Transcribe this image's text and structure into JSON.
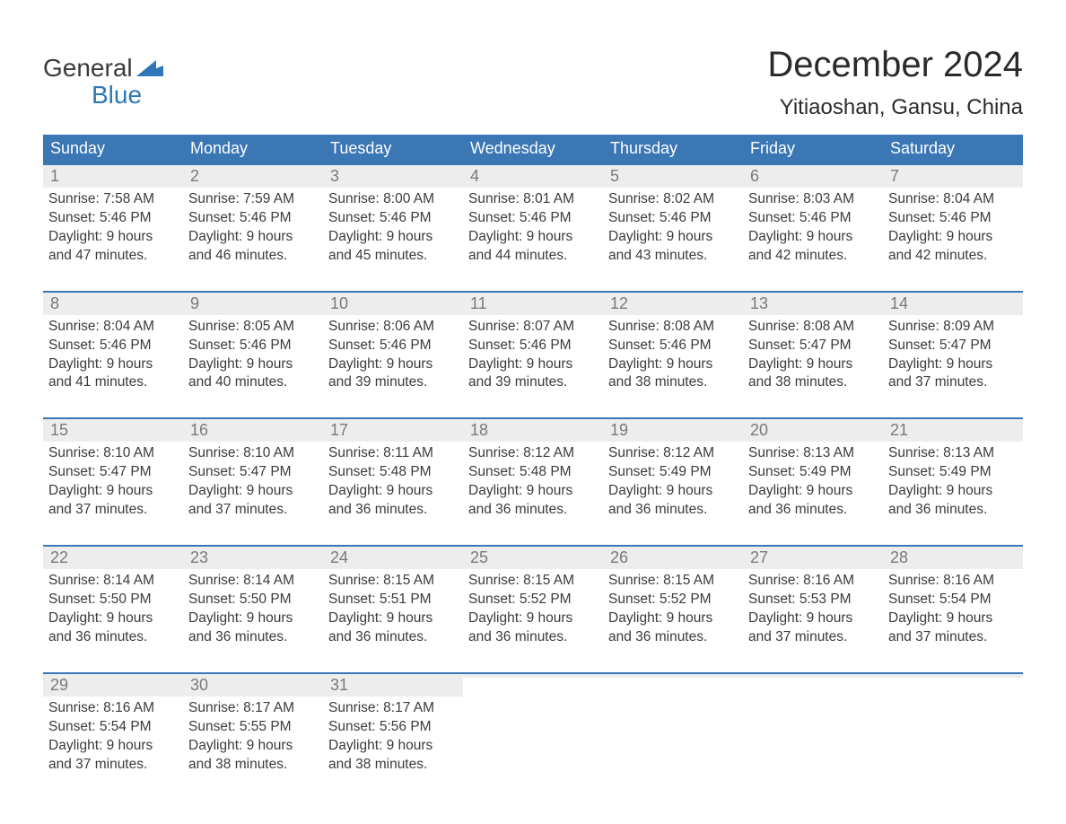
{
  "brand": {
    "word1": "General",
    "word2": "Blue",
    "word1_color": "#3a3a3a",
    "word2_color": "#2f77b8",
    "flag_color": "#2f77b8"
  },
  "title": "December 2024",
  "location": "Yitiaoshan, Gansu, China",
  "colors": {
    "header_bg": "#3a77b4",
    "header_text": "#ffffff",
    "row_accent": "#3a77b4",
    "daynum_bg": "#ededed",
    "daynum_text": "#7a7a7a",
    "body_text": "#3b3b3b",
    "page_bg": "#ffffff"
  },
  "typography": {
    "title_fontsize": 40,
    "location_fontsize": 24,
    "dow_fontsize": 18,
    "daynum_fontsize": 18,
    "body_fontsize": 15.5
  },
  "days_of_week": [
    "Sunday",
    "Monday",
    "Tuesday",
    "Wednesday",
    "Thursday",
    "Friday",
    "Saturday"
  ],
  "weeks": [
    [
      {
        "n": "1",
        "sunrise": "Sunrise: 7:58 AM",
        "sunset": "Sunset: 5:46 PM",
        "d1": "Daylight: 9 hours",
        "d2": "and 47 minutes."
      },
      {
        "n": "2",
        "sunrise": "Sunrise: 7:59 AM",
        "sunset": "Sunset: 5:46 PM",
        "d1": "Daylight: 9 hours",
        "d2": "and 46 minutes."
      },
      {
        "n": "3",
        "sunrise": "Sunrise: 8:00 AM",
        "sunset": "Sunset: 5:46 PM",
        "d1": "Daylight: 9 hours",
        "d2": "and 45 minutes."
      },
      {
        "n": "4",
        "sunrise": "Sunrise: 8:01 AM",
        "sunset": "Sunset: 5:46 PM",
        "d1": "Daylight: 9 hours",
        "d2": "and 44 minutes."
      },
      {
        "n": "5",
        "sunrise": "Sunrise: 8:02 AM",
        "sunset": "Sunset: 5:46 PM",
        "d1": "Daylight: 9 hours",
        "d2": "and 43 minutes."
      },
      {
        "n": "6",
        "sunrise": "Sunrise: 8:03 AM",
        "sunset": "Sunset: 5:46 PM",
        "d1": "Daylight: 9 hours",
        "d2": "and 42 minutes."
      },
      {
        "n": "7",
        "sunrise": "Sunrise: 8:04 AM",
        "sunset": "Sunset: 5:46 PM",
        "d1": "Daylight: 9 hours",
        "d2": "and 42 minutes."
      }
    ],
    [
      {
        "n": "8",
        "sunrise": "Sunrise: 8:04 AM",
        "sunset": "Sunset: 5:46 PM",
        "d1": "Daylight: 9 hours",
        "d2": "and 41 minutes."
      },
      {
        "n": "9",
        "sunrise": "Sunrise: 8:05 AM",
        "sunset": "Sunset: 5:46 PM",
        "d1": "Daylight: 9 hours",
        "d2": "and 40 minutes."
      },
      {
        "n": "10",
        "sunrise": "Sunrise: 8:06 AM",
        "sunset": "Sunset: 5:46 PM",
        "d1": "Daylight: 9 hours",
        "d2": "and 39 minutes."
      },
      {
        "n": "11",
        "sunrise": "Sunrise: 8:07 AM",
        "sunset": "Sunset: 5:46 PM",
        "d1": "Daylight: 9 hours",
        "d2": "and 39 minutes."
      },
      {
        "n": "12",
        "sunrise": "Sunrise: 8:08 AM",
        "sunset": "Sunset: 5:46 PM",
        "d1": "Daylight: 9 hours",
        "d2": "and 38 minutes."
      },
      {
        "n": "13",
        "sunrise": "Sunrise: 8:08 AM",
        "sunset": "Sunset: 5:47 PM",
        "d1": "Daylight: 9 hours",
        "d2": "and 38 minutes."
      },
      {
        "n": "14",
        "sunrise": "Sunrise: 8:09 AM",
        "sunset": "Sunset: 5:47 PM",
        "d1": "Daylight: 9 hours",
        "d2": "and 37 minutes."
      }
    ],
    [
      {
        "n": "15",
        "sunrise": "Sunrise: 8:10 AM",
        "sunset": "Sunset: 5:47 PM",
        "d1": "Daylight: 9 hours",
        "d2": "and 37 minutes."
      },
      {
        "n": "16",
        "sunrise": "Sunrise: 8:10 AM",
        "sunset": "Sunset: 5:47 PM",
        "d1": "Daylight: 9 hours",
        "d2": "and 37 minutes."
      },
      {
        "n": "17",
        "sunrise": "Sunrise: 8:11 AM",
        "sunset": "Sunset: 5:48 PM",
        "d1": "Daylight: 9 hours",
        "d2": "and 36 minutes."
      },
      {
        "n": "18",
        "sunrise": "Sunrise: 8:12 AM",
        "sunset": "Sunset: 5:48 PM",
        "d1": "Daylight: 9 hours",
        "d2": "and 36 minutes."
      },
      {
        "n": "19",
        "sunrise": "Sunrise: 8:12 AM",
        "sunset": "Sunset: 5:49 PM",
        "d1": "Daylight: 9 hours",
        "d2": "and 36 minutes."
      },
      {
        "n": "20",
        "sunrise": "Sunrise: 8:13 AM",
        "sunset": "Sunset: 5:49 PM",
        "d1": "Daylight: 9 hours",
        "d2": "and 36 minutes."
      },
      {
        "n": "21",
        "sunrise": "Sunrise: 8:13 AM",
        "sunset": "Sunset: 5:49 PM",
        "d1": "Daylight: 9 hours",
        "d2": "and 36 minutes."
      }
    ],
    [
      {
        "n": "22",
        "sunrise": "Sunrise: 8:14 AM",
        "sunset": "Sunset: 5:50 PM",
        "d1": "Daylight: 9 hours",
        "d2": "and 36 minutes."
      },
      {
        "n": "23",
        "sunrise": "Sunrise: 8:14 AM",
        "sunset": "Sunset: 5:50 PM",
        "d1": "Daylight: 9 hours",
        "d2": "and 36 minutes."
      },
      {
        "n": "24",
        "sunrise": "Sunrise: 8:15 AM",
        "sunset": "Sunset: 5:51 PM",
        "d1": "Daylight: 9 hours",
        "d2": "and 36 minutes."
      },
      {
        "n": "25",
        "sunrise": "Sunrise: 8:15 AM",
        "sunset": "Sunset: 5:52 PM",
        "d1": "Daylight: 9 hours",
        "d2": "and 36 minutes."
      },
      {
        "n": "26",
        "sunrise": "Sunrise: 8:15 AM",
        "sunset": "Sunset: 5:52 PM",
        "d1": "Daylight: 9 hours",
        "d2": "and 36 minutes."
      },
      {
        "n": "27",
        "sunrise": "Sunrise: 8:16 AM",
        "sunset": "Sunset: 5:53 PM",
        "d1": "Daylight: 9 hours",
        "d2": "and 37 minutes."
      },
      {
        "n": "28",
        "sunrise": "Sunrise: 8:16 AM",
        "sunset": "Sunset: 5:54 PM",
        "d1": "Daylight: 9 hours",
        "d2": "and 37 minutes."
      }
    ],
    [
      {
        "n": "29",
        "sunrise": "Sunrise: 8:16 AM",
        "sunset": "Sunset: 5:54 PM",
        "d1": "Daylight: 9 hours",
        "d2": "and 37 minutes."
      },
      {
        "n": "30",
        "sunrise": "Sunrise: 8:17 AM",
        "sunset": "Sunset: 5:55 PM",
        "d1": "Daylight: 9 hours",
        "d2": "and 38 minutes."
      },
      {
        "n": "31",
        "sunrise": "Sunrise: 8:17 AM",
        "sunset": "Sunset: 5:56 PM",
        "d1": "Daylight: 9 hours",
        "d2": "and 38 minutes."
      },
      {
        "empty": true
      },
      {
        "empty": true
      },
      {
        "empty": true
      },
      {
        "empty": true
      }
    ]
  ]
}
